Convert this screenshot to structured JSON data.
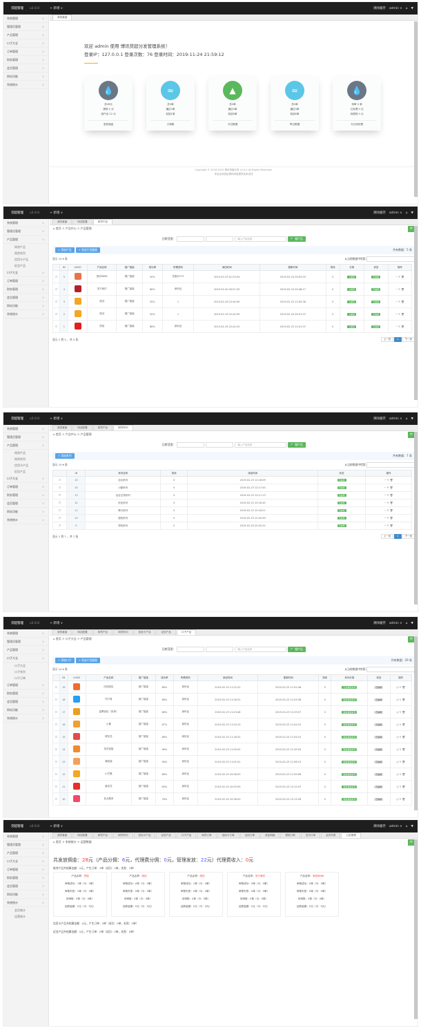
{
  "topbar": {
    "brand": "贷超管理",
    "version": "v2.0.0",
    "add": "+ 新增 ∨",
    "clear_cache": "清除缓存",
    "user": "admin ∨",
    "home_icon": "⌂",
    "shirt_icon": "▼"
  },
  "sidebar": [
    "系统管理",
    "管理员管理",
    "产品管理",
    "口子大全",
    "订单管理",
    "财务管理",
    "会员管理",
    "网站功能",
    "系统统计"
  ],
  "product_sub": [
    "网贷产品",
    "网贷系列",
    "信用卡产品",
    "征信产品"
  ],
  "kouzi_sub": [
    "口子大全",
    "口子系列",
    "口子订单"
  ],
  "stats_sub": [
    "会员统计",
    "运营统计"
  ],
  "dashboard": {
    "tab": "我的桌面",
    "welcome": "欢迎 admin 使用 博讯贷超分发管理系统！",
    "login": "登录IP：127.0.0.1 登录次数：76 登录时间：2019-11-24 21:59:12",
    "cards": [
      {
        "lines": [
          "总28元",
          "提现 0 元",
          "用户余 22 元"
        ],
        "footer": "发放佣金",
        "color": "#6b7785",
        "icon": "💧"
      },
      {
        "lines": [
          "总3单",
          "通过2单",
          "驳回1单"
        ],
        "footer": "订单数",
        "color": "#5bc6e6",
        "icon": "≈"
      },
      {
        "lines": [
          "总0单",
          "通过0单",
          "驳回0单"
        ],
        "footer": "今日数据",
        "color": "#5cb85c",
        "icon": "▲"
      },
      {
        "lines": [
          "总0单",
          "通过0单",
          "驳回0单"
        ],
        "footer": "昨日数据",
        "color": "#5bc6e6",
        "icon": "≈"
      },
      {
        "lines": [
          "待审 0 单",
          "已处理 0 元",
          "待提现 0 元"
        ],
        "footer": "今日待处理",
        "color": "#6b7785",
        "icon": "💧"
      }
    ],
    "copyright": "Copyright © 2018-2019 博讯贷超分发 v2.0.0 All Rights Reserved.",
    "copyright2": "本后台系统由博讯网络提供技术支持"
  },
  "products": {
    "tabs": [
      "我的桌面",
      "网站配置",
      "网贷产品"
    ],
    "breadcrumb": "⌂ 首页 > 产品中心 > 产品管理",
    "date_label": "日期范围：",
    "search_placeholder": "输入产品名称",
    "search_btn": "🔍 搜产品",
    "add_btn": "+ 添加产品",
    "export_btn": "+ 导出产品链接",
    "total": "共有数据：5 条",
    "show": "显示 10 ▾ 条",
    "filter_label": "从当前数据中检索:",
    "columns": [
      "",
      "ID",
      "LOGO",
      "产品名称",
      "推广链接",
      "成功率",
      "所需资料",
      "添加时间",
      "更新时间",
      "排序",
      "分类",
      "状态",
      "操作"
    ],
    "rows": [
      [
        "5",
        "#e8744a",
        "测试6666",
        "推广链接",
        "50%",
        "芝麻分575",
        "2019-02-23 01:23:54",
        "2019-02-24 00:02:03",
        "0",
        "小额贷",
        "已启用"
      ],
      [
        "4",
        "#b3202a",
        "关于我们",
        "推广链接",
        "88%",
        "身份证",
        "2019-02-20 00:51:53",
        "2019-02-24 00:48:17",
        "0",
        "小额贷",
        "已启用"
      ],
      [
        "3",
        "#f5a623",
        "测试",
        "推广链接",
        "50%",
        "1",
        "2019-02-19 22:44:00",
        "2019-02-23 12:05:38",
        "0",
        "小额贷",
        "已启用"
      ],
      [
        "2",
        "#f5a623",
        "测试",
        "推广链接",
        "50%",
        "1",
        "2019-02-19 22:43:59",
        "2019-02-20 00:01:07",
        "0",
        "小额贷",
        "已启用"
      ],
      [
        "1",
        "#e0201c",
        "货钱",
        "推广链接",
        "88%",
        "身份证",
        "2019-02-19 22:24:19",
        "2019-02-23 12:01:37",
        "0",
        "小额贷",
        "已启用"
      ]
    ],
    "ops": "− ✎ 🗑",
    "info": "显示 1 到 5 ，共 5 条",
    "prev": "上一页",
    "page": "1",
    "next": "下一页"
  },
  "series": {
    "tabs": [
      "我的桌面",
      "网站配置",
      "网贷产品",
      "网贷系列"
    ],
    "breadcrumb": "⌂ 首页 > 产品中心 > 产品管理",
    "date_label": "日期范围：",
    "search_placeholder": "输入产品名称",
    "search_btn": "🔍 搜产品",
    "add_btn": "+ 添加系列",
    "total": "共有数据：7 条",
    "show": "显示 10 ▾ 条",
    "filter_label": "从当前数据中检索:",
    "columns": [
      "",
      "ID",
      "系列名称",
      "排序",
      "添加时间",
      "状态",
      "操作"
    ],
    "rows": [
      [
        "15",
        "百合系列",
        "0",
        "2019-02-23 12:18:09",
        "已启用"
      ],
      [
        "14",
        "小额系列",
        "0",
        "2019-02-23 12:17:45",
        "已启用"
      ],
      [
        "13",
        "百合白领系列",
        "0",
        "2019-02-23 12:17:13",
        "已启用"
      ],
      [
        "12",
        "好店系列",
        "0",
        "2019-02-23 12:16:45",
        "已启用"
      ],
      [
        "11",
        "黑马系列",
        "0",
        "2019-02-23 12:16:21",
        "已启用"
      ],
      [
        "10",
        "退钱系列",
        "0",
        "2019-02-23 12:04:39",
        "已启用"
      ],
      [
        "9",
        "饼钱系列",
        "0",
        "2019-02-20 20:42:22",
        "已启用"
      ]
    ],
    "ops": "− ✎ 🗑",
    "info": "显示 1 到 7 ，共 7 条",
    "prev": "上一页",
    "page": "1",
    "next": "下一页"
  },
  "kouzi": {
    "tabs": [
      "我的桌面",
      "网站配置",
      "网贷产品",
      "网贷系列",
      "信用卡产品",
      "征信产品",
      "口子产品"
    ],
    "breadcrumb": "⌂ 首页 > 口子大全 > 产品管理",
    "date_label": "日期范围：",
    "search_placeholder": "输入产品名称",
    "search_btn": "🔍 搜产品",
    "add_btn": "+ 添加口子",
    "export_btn": "+ 导出产品链接",
    "total": "共有数据：29 条",
    "show": "显示 10 ▾ 条",
    "filter_label": "从当前数据中检索:",
    "columns": [
      "",
      "ID",
      "LOGO",
      "产品名称",
      "推广链接",
      "成功率",
      "所需资料",
      "添加时间",
      "更新时间",
      "排序",
      "系列分类",
      "状态",
      "操作"
    ],
    "rows": [
      [
        "19",
        "#f26b2a",
        "向钱钱包",
        "推广链接",
        "88%",
        "身份证",
        "2019-02-19 11:22:22",
        "2019-02-23 11:52:48",
        "0",
        "正在审核系列",
        "已禁用"
      ],
      [
        "18",
        "#2a9df4",
        "叮叮有",
        "推广链接",
        "88%",
        "身份证",
        "2019-02-19 11:26:31",
        "2019-02-23 11:53:38",
        "0",
        "随后发放系列",
        "已禁用"
      ],
      [
        "17",
        "#e8a020",
        "金票钱包（安卓）",
        "推广链接",
        "88%",
        "身份证",
        "2019-02-19 11:23:46",
        "2019-02-23 11:53:57",
        "0",
        "随后发放系列",
        "已禁用"
      ],
      [
        "16",
        "#f0a030",
        "小喜",
        "推广链接",
        "87%",
        "身份证",
        "2019-02-19 11:20:13",
        "2019-02-23 11:54:15",
        "0",
        "随后发放系列",
        "已禁用"
      ],
      [
        "15",
        "#e84a4a",
        "得花花",
        "推广链接",
        "88%",
        "身份证",
        "2019-02-19 11:18:32",
        "2019-02-23 11:54:01",
        "0",
        "随后发放系列",
        "已禁用"
      ],
      [
        "14",
        "#f08a30",
        "花花钱袋",
        "推广链接",
        "98%",
        "身份证",
        "2019-02-19 11:05:02",
        "2019-02-23 11:55:55",
        "0",
        "随后发放系列",
        "已禁用"
      ],
      [
        "13",
        "#f5a05a",
        "满钱袋",
        "推广链接",
        "96%",
        "身份证",
        "2019-02-19 11:01:01",
        "2019-02-23 11:56:13",
        "0",
        "随后发放系列",
        "已禁用"
      ],
      [
        "12",
        "#f5a623",
        "小芒果",
        "推广链接",
        "88%",
        "身份证",
        "2019-02-19 10:58:03",
        "2019-02-23 11:59:06",
        "0",
        "随后发放系列",
        "已禁用"
      ],
      [
        "11",
        "#e8302a",
        "豪花花",
        "推广链接",
        "89%",
        "身份证",
        "2019-02-19 10:53:59",
        "2019-02-23 12:12:07",
        "0",
        "随后发放系列",
        "已禁用"
      ],
      [
        "10",
        "#f04a6a",
        "多点看多",
        "推广链接",
        "78%",
        "身份证",
        "2019-02-19 10:38:43",
        "2019-02-23 12:13:28",
        "0",
        "随后发放系列",
        "已禁用"
      ]
    ],
    "ops": "◎ ✎ 🗑"
  },
  "stats": {
    "tabs": [
      "我的桌面",
      "网站配置",
      "网贷产品",
      "网贷系列",
      "信用卡产品",
      "征信产品",
      "口子产品",
      "网贷订单",
      "信用卡订单",
      "征信订单",
      "资金明细",
      "提现订单",
      "支付订单",
      "会员列表",
      "公告管理"
    ],
    "breadcrumb": "⌂ 首页 > 系统统计 > 运营数据",
    "headline": [
      [
        "共发放佣金：",
        ""
      ],
      [
        "28",
        "red"
      ],
      [
        "元（产品分佣：",
        ""
      ],
      [
        "6",
        "bl"
      ],
      [
        "元，代理费分佣：",
        ""
      ],
      [
        "0",
        "bl"
      ],
      [
        "元，管理发放：",
        ""
      ],
      [
        "22",
        "bl"
      ],
      [
        "元）代理费收入：",
        ""
      ],
      [
        "0",
        "red"
      ],
      [
        "元",
        ""
      ]
    ],
    "loan_summary": "推贷产品共结算金额：0元，产生订单：3单（成功：2单，失败：1单）",
    "cards": [
      {
        "name": "货钱",
        "lines": [
          "审核成功：1单（今：0单）",
          "审核失败：1单（今：0单）",
          "待审核：0单（今：0单）",
          "结算金额：0元（今：0元）"
        ]
      },
      {
        "name": "测试",
        "lines": [
          "审核成功：0单（今：0单）",
          "审核失败：0单（今：0单）",
          "待审核：0单（今：0单）",
          "结算金额：0元（今：0元）"
        ]
      },
      {
        "name": "测试",
        "lines": [
          "审核成功：1单（今：0单）",
          "审核失败：0单（今：0单）",
          "待审核：0单（今：0单）",
          "结算金额：0元（今：0元）"
        ]
      },
      {
        "name": "关于我们",
        "lines": [
          "审核成功：0单（今：0单）",
          "审核失败：0单（今：0单）",
          "待审核：0单（今：0单）",
          "结算金额：0元（今：0元）"
        ]
      },
      {
        "name": "测试6666",
        "lines": [
          "审核成功：0单（今：0单）",
          "审核失败：0单（今：0单）",
          "待审核：0单（今：0单）",
          "结算金额：0元（今：0元）"
        ]
      }
    ],
    "product_label": "产品名称：",
    "credit_summary": "信用卡产品共结算金额：0元，产生订单：0单（成功：0单，失败：0单）",
    "zx_summary": "征信产品共结算金额：0元，产生订单：0单（成功：0单，失败：0单）"
  }
}
